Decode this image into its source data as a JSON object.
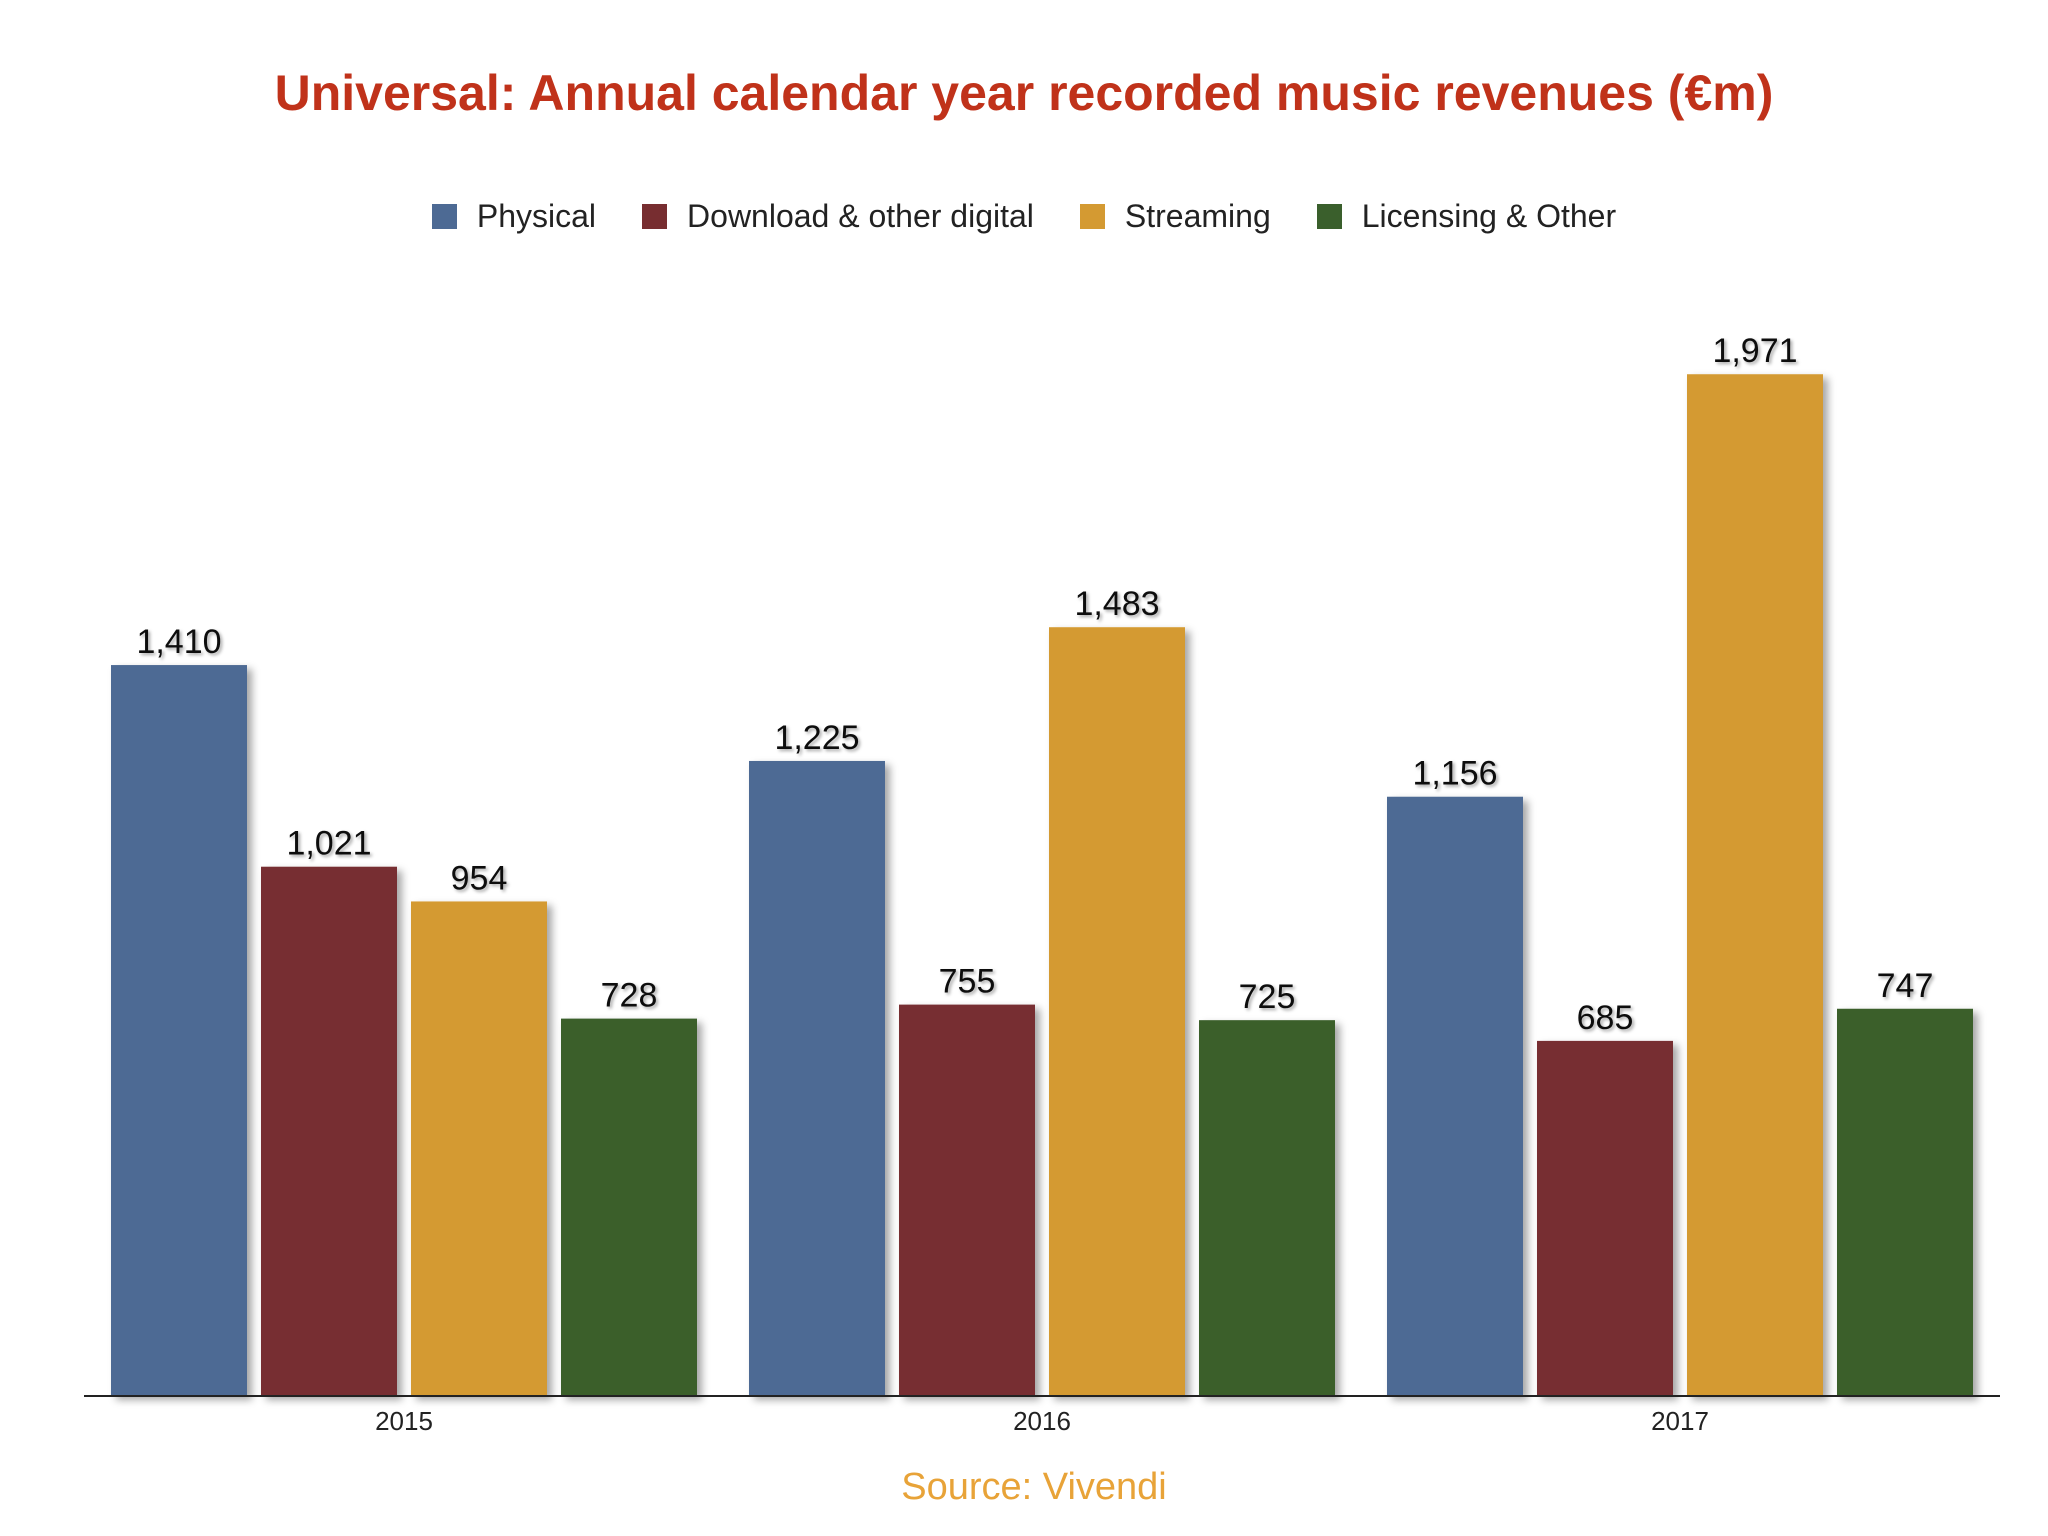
{
  "chart_data": {
    "type": "bar",
    "title": "Universal: Annual calendar year recorded music revenues (€m)",
    "xlabel": "",
    "ylabel": "",
    "categories": [
      "2015",
      "2016",
      "2017"
    ],
    "series": [
      {
        "name": "Physical",
        "color": "#4d6a94",
        "values": [
          1410,
          1225,
          1156
        ],
        "labels": [
          "1,410",
          "1,225",
          "1,156"
        ]
      },
      {
        "name": "Download & other digital",
        "color": "#772d30",
        "values": [
          1021,
          755,
          685
        ],
        "labels": [
          "1,021",
          "755",
          "685"
        ]
      },
      {
        "name": "Streaming",
        "color": "#d49a32",
        "values": [
          954,
          1483,
          1971
        ],
        "labels": [
          "954",
          "1,483",
          "1,971"
        ]
      },
      {
        "name": "Licensing & Other",
        "color": "#3a5f2c",
        "values": [
          728,
          725,
          747
        ],
        "labels": [
          "728",
          "725",
          "747"
        ]
      }
    ],
    "ylim": [
      0,
      2000
    ],
    "grid": false,
    "legend_position": "top"
  },
  "source": "Source: Vivendi"
}
